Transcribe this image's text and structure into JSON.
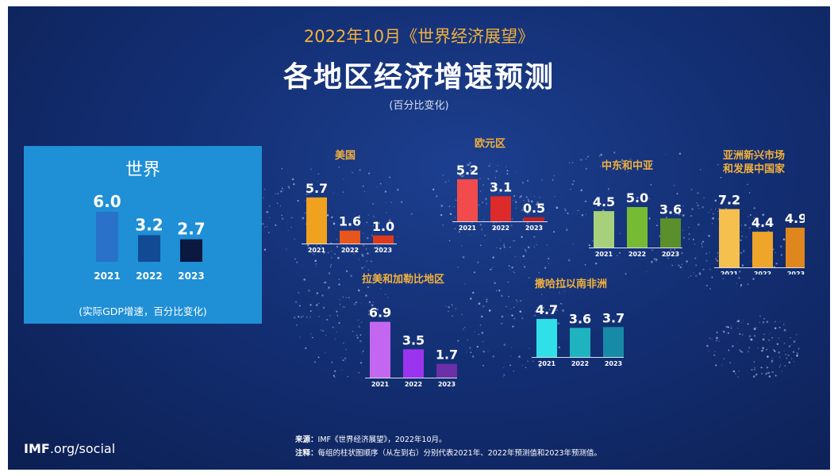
{
  "header": {
    "subtitle": "2022年10月《世界经济展望》",
    "title": "各地区经济增速预测",
    "unit": "(百分比变化)"
  },
  "world": {
    "title": "世界",
    "note": "(实际GDP增速，百分比变化)"
  },
  "footer": {
    "logo_bold": "IMF",
    "logo_rest": ".org/social",
    "source_label": "来源：",
    "source_text": "IMF《世界经济展望》，2022年10月。",
    "note_label": "注释：",
    "note_text": "每组的柱状图顺序（从左到右）分别代表2021年、2022年预测值和2023年预测值。"
  },
  "chart_data": [
    {
      "type": "bar",
      "title": "世界",
      "categories": [
        "2021",
        "2022",
        "2023"
      ],
      "values": [
        6.0,
        3.2,
        2.7
      ],
      "colors": [
        "#2a72c9",
        "#134a94",
        "#0b1840"
      ]
    },
    {
      "type": "bar",
      "title": "美国",
      "categories": [
        "2021",
        "2022",
        "2023"
      ],
      "values": [
        5.7,
        1.6,
        1.0
      ],
      "colors": [
        "#f0a21e",
        "#e8561e",
        "#dd3a1c"
      ]
    },
    {
      "type": "bar",
      "title": "欧元区",
      "categories": [
        "2021",
        "2022",
        "2023"
      ],
      "values": [
        5.2,
        3.1,
        0.5
      ],
      "colors": [
        "#f14b4b",
        "#dd2a2a",
        "#c41f1f"
      ]
    },
    {
      "type": "bar",
      "title": "中东和中亚",
      "categories": [
        "2021",
        "2022",
        "2023"
      ],
      "values": [
        4.5,
        5.0,
        3.6
      ],
      "colors": [
        "#a7d07a",
        "#77bb35",
        "#5a8f2c"
      ]
    },
    {
      "type": "bar",
      "title": "亚洲新兴市场\n和发展中国家",
      "categories": [
        "2021",
        "2022",
        "2023"
      ],
      "values": [
        7.2,
        4.4,
        4.9
      ],
      "colors": [
        "#f6c04f",
        "#eea52a",
        "#e0861e"
      ]
    },
    {
      "type": "bar",
      "title": "拉美和加勒比地区",
      "categories": [
        "2021",
        "2022",
        "2023"
      ],
      "values": [
        6.9,
        3.5,
        1.7
      ],
      "colors": [
        "#c467f0",
        "#9b34ee",
        "#6b2fa8"
      ]
    },
    {
      "type": "bar",
      "title": "撒哈拉以南非洲",
      "categories": [
        "2021",
        "2022",
        "2023"
      ],
      "values": [
        4.7,
        3.6,
        3.7
      ],
      "colors": [
        "#2fe0e8",
        "#1fb3bf",
        "#178aa8"
      ]
    }
  ]
}
